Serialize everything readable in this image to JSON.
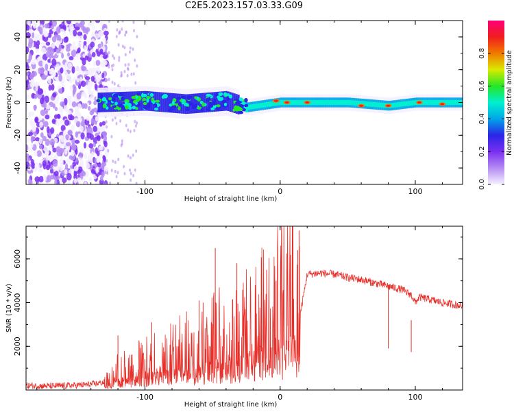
{
  "page_title": "C2E5.2023.157.03.33.G09",
  "colors": {
    "background": "#ffffff",
    "axis": "#000000",
    "snr_line": "#e8302a",
    "colorbar": [
      "#f5f0ff",
      "#b58cf2",
      "#7a2ff0",
      "#2a25e6",
      "#00a6e8",
      "#00f0d0",
      "#25e625",
      "#d9ea00",
      "#f07a00",
      "#f01e1e",
      "#ff0077"
    ]
  },
  "chart_data": [
    {
      "type": "heatmap",
      "title": "C2E5.2023.157.03.33.G09",
      "xlabel": "Height of straight line (km)",
      "ylabel": "Frequency (Hz)",
      "xlim": [
        -188,
        135
      ],
      "ylim": [
        -50,
        50
      ],
      "x_ticks": [
        -100,
        0,
        100
      ],
      "y_ticks": [
        -40,
        -20,
        0,
        20,
        40
      ],
      "grid": false,
      "description_points": {
        "band_center_hz": [
          [
            -135,
            0
          ],
          [
            -100,
            1
          ],
          [
            -70,
            -1
          ],
          [
            -40,
            1
          ],
          [
            -25,
            -3
          ],
          [
            0,
            0
          ],
          [
            50,
            0
          ],
          [
            80,
            -2
          ],
          [
            100,
            0
          ],
          [
            135,
            0
          ]
        ],
        "high_amplitude_spots": [
          [
            -3,
            1
          ],
          [
            5,
            0
          ],
          [
            20,
            0
          ],
          [
            60,
            -2
          ],
          [
            80,
            -2
          ],
          [
            103,
            0
          ],
          [
            120,
            -1
          ]
        ]
      },
      "colorbar": {
        "label": "Normalized spectral amplitude",
        "range": [
          0,
          1
        ],
        "ticks": [
          0.0,
          0.2,
          0.4,
          0.6,
          0.8
        ]
      }
    },
    {
      "type": "line",
      "xlabel": "Height of straight line (km)",
      "ylabel": "SNR (10 * v/v)",
      "xlim": [
        -188,
        135
      ],
      "ylim": [
        0,
        7500
      ],
      "x_ticks": [
        -100,
        0,
        100
      ],
      "y_ticks": [
        2000,
        4000,
        6000
      ],
      "grid": false,
      "series": [
        {
          "x": [
            -188,
            -170,
            -150,
            -140,
            -130,
            -125,
            -120,
            -110,
            -100,
            -90,
            -80,
            -70,
            -60,
            -50,
            -40,
            -30,
            -20,
            -10,
            -5,
            0,
            5,
            10,
            15,
            20,
            30,
            40,
            50,
            60,
            70,
            80,
            90,
            97,
            100,
            103,
            110,
            120,
            130,
            135
          ],
          "values": [
            200,
            180,
            220,
            260,
            350,
            600,
            900,
            1100,
            1300,
            1500,
            1700,
            1900,
            2200,
            2400,
            2600,
            2800,
            3200,
            3600,
            4000,
            4200,
            4600,
            5000,
            3500,
            5300,
            5350,
            5300,
            5150,
            5050,
            4900,
            4750,
            4600,
            4350,
            4000,
            4250,
            4150,
            4000,
            3900,
            3850
          ]
        }
      ],
      "peaks": [
        [
          -120,
          2500
        ],
        [
          -95,
          3100
        ],
        [
          -60,
          4100
        ],
        [
          -57,
          4000
        ],
        [
          -48,
          6500
        ],
        [
          -32,
          5800
        ],
        [
          -10,
          5500
        ],
        [
          -3,
          5000
        ],
        [
          5,
          5500
        ],
        [
          13,
          6400
        ],
        [
          14,
          7300
        ],
        [
          80,
          4800
        ],
        [
          97,
          3200
        ]
      ]
    }
  ]
}
